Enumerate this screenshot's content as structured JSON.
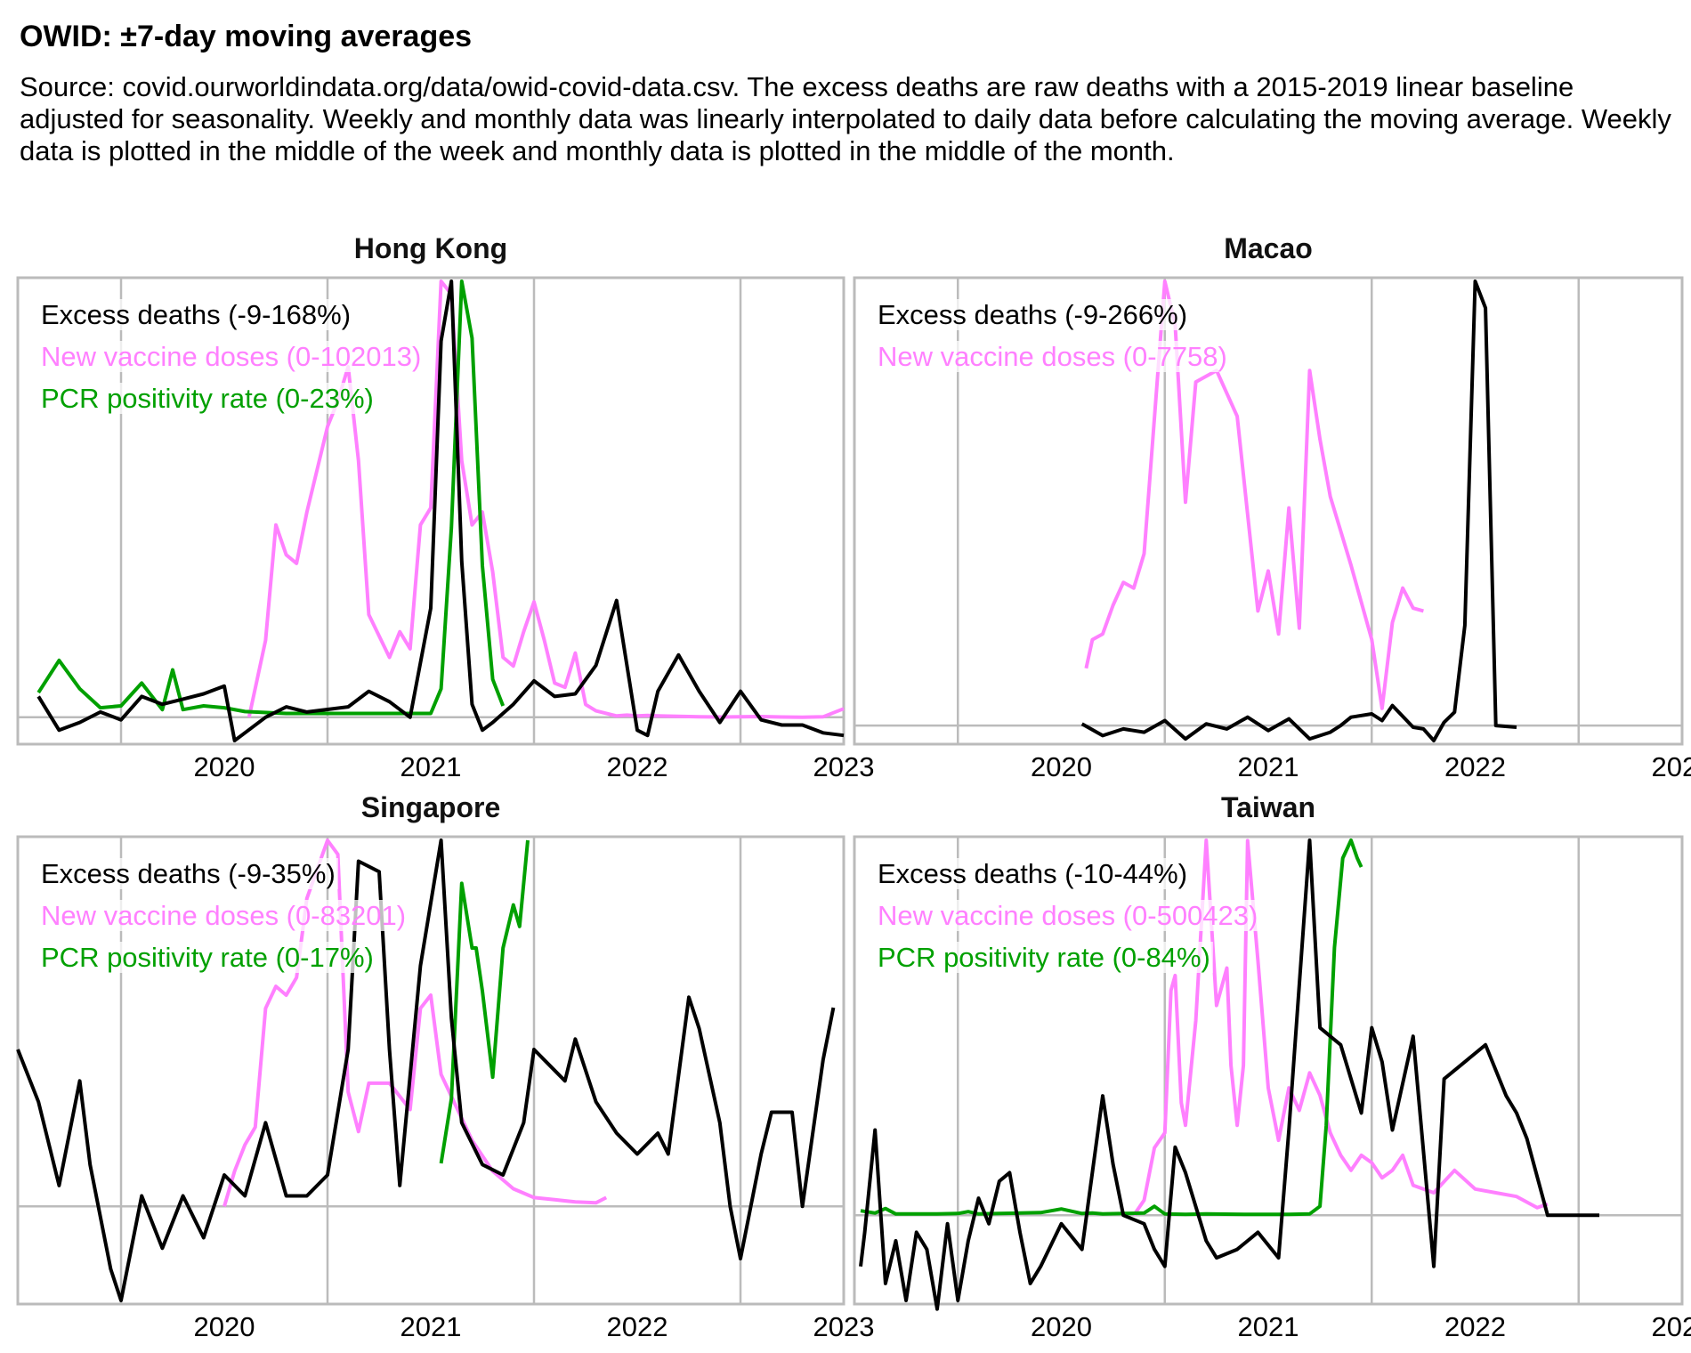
{
  "title": "OWID: ±7-day moving averages",
  "subtitle": "Source: covid.ourworldindata.org/data/owid-covid-data.csv. The excess deaths are raw deaths with a 2015-2019 linear baseline adjusted for seasonality. Weekly and monthly data was linearly interpolated to daily data before calculating the moving average. Weekly data is plotted in the middle of the week and monthly data is plotted in the middle of the month.",
  "colors": {
    "excess": "#000000",
    "vaccine": "#ff80ff",
    "pcr": "#00a000",
    "grid": "#bbbbbb"
  },
  "chart_data": [
    {
      "type": "line",
      "title": "Hong Kong",
      "xlabel": "",
      "ylabel": "",
      "x_ticks": [
        "2020",
        "2021",
        "2022",
        "2023"
      ],
      "xlim": [
        2019.5,
        2023.5
      ],
      "grid": true,
      "legend_position": "top-left",
      "series": [
        {
          "name": "Excess deaths (-9-168%)",
          "key": "excess",
          "range": [
            -9,
            168
          ],
          "x": [
            2019.6,
            2019.7,
            2019.8,
            2019.9,
            2020.0,
            2020.1,
            2020.2,
            2020.3,
            2020.4,
            2020.5,
            2020.55,
            2020.6,
            2020.7,
            2020.8,
            2020.9,
            2021.0,
            2021.1,
            2021.2,
            2021.3,
            2021.4,
            2021.5,
            2021.55,
            2021.6,
            2021.65,
            2021.7,
            2021.75,
            2021.8,
            2021.9,
            2022.0,
            2022.1,
            2022.2,
            2022.3,
            2022.4,
            2022.5,
            2022.55,
            2022.6,
            2022.7,
            2022.8,
            2022.9,
            2023.0,
            2023.1,
            2023.2,
            2023.3,
            2023.4,
            2023.5
          ],
          "y": [
            8,
            -5,
            -2,
            2,
            -1,
            8,
            5,
            7,
            9,
            12,
            -9,
            -6,
            0,
            4,
            2,
            3,
            4,
            10,
            6,
            0,
            42,
            145,
            168,
            60,
            5,
            -5,
            -2,
            5,
            14,
            8,
            9,
            20,
            45,
            -5,
            -7,
            10,
            24,
            10,
            -2,
            10,
            -1,
            -3,
            -3,
            -6,
            -7
          ]
        },
        {
          "name": "New vaccine doses (0-102013)",
          "key": "vaccine",
          "range": [
            0,
            102013
          ],
          "x": [
            2020.62,
            2020.7,
            2020.75,
            2020.8,
            2020.85,
            2020.9,
            2021.0,
            2021.05,
            2021.1,
            2021.15,
            2021.2,
            2021.3,
            2021.35,
            2021.4,
            2021.45,
            2021.5,
            2021.55,
            2021.6,
            2021.65,
            2021.7,
            2021.75,
            2021.8,
            2021.85,
            2021.9,
            2021.95,
            2022.0,
            2022.05,
            2022.1,
            2022.15,
            2022.2,
            2022.25,
            2022.3,
            2022.4,
            2022.45,
            2022.5,
            2022.55,
            2022.6,
            2022.7,
            2022.8,
            2022.9,
            2023.0,
            2023.1,
            2023.2,
            2023.3,
            2023.4,
            2023.5
          ],
          "y": [
            0,
            18000,
            45000,
            38000,
            36000,
            48000,
            68000,
            74000,
            82000,
            60000,
            24000,
            14000,
            20000,
            16000,
            45000,
            49000,
            102013,
            99000,
            60000,
            45000,
            48000,
            34000,
            14000,
            12000,
            20000,
            27000,
            18000,
            8000,
            7000,
            15000,
            3000,
            1500,
            300,
            500,
            300,
            400,
            300,
            200,
            100,
            50,
            100,
            150,
            50,
            20,
            100,
            2000
          ]
        },
        {
          "name": "PCR positivity rate (0-23%)",
          "key": "pcr",
          "range": [
            0,
            23
          ],
          "x": [
            2019.6,
            2019.7,
            2019.8,
            2019.9,
            2020.0,
            2020.1,
            2020.2,
            2020.25,
            2020.3,
            2020.4,
            2020.5,
            2020.6,
            2020.8,
            2021.0,
            2021.2,
            2021.4,
            2021.5,
            2021.55,
            2021.6,
            2021.65,
            2021.7,
            2021.75,
            2021.8,
            2021.85
          ],
          "y": [
            1.3,
            3.0,
            1.5,
            0.5,
            0.6,
            1.8,
            0.4,
            2.5,
            0.4,
            0.6,
            0.5,
            0.3,
            0.2,
            0.2,
            0.2,
            0.2,
            0.2,
            1.5,
            10,
            23,
            20,
            8,
            2,
            0.6
          ]
        }
      ]
    },
    {
      "type": "line",
      "title": "Macao",
      "xlabel": "",
      "ylabel": "",
      "x_ticks": [
        "2020",
        "2021",
        "2022",
        "2023"
      ],
      "xlim": [
        2019.5,
        2023.5
      ],
      "grid": true,
      "legend_position": "top-left",
      "series": [
        {
          "name": "Excess deaths (-9-266%)",
          "key": "excess",
          "range": [
            -9,
            266
          ],
          "x": [
            2020.6,
            2020.7,
            2020.8,
            2020.9,
            2021.0,
            2021.1,
            2021.2,
            2021.3,
            2021.4,
            2021.5,
            2021.6,
            2021.7,
            2021.8,
            2021.85,
            2021.9,
            2022.0,
            2022.05,
            2022.1,
            2022.2,
            2022.25,
            2022.3,
            2022.35,
            2022.4,
            2022.45,
            2022.5,
            2022.55,
            2022.6,
            2022.7
          ],
          "y": [
            1,
            -6,
            -2,
            -4,
            3,
            -8,
            1,
            -2,
            5,
            -3,
            4,
            -8,
            -4,
            0,
            5,
            7,
            3,
            12,
            -1,
            -2,
            -9,
            2,
            8,
            60,
            266,
            250,
            0,
            -1
          ]
        },
        {
          "name": "New vaccine doses (0-7758)",
          "key": "vaccine",
          "range": [
            0,
            7758
          ],
          "x": [
            2020.62,
            2020.65,
            2020.7,
            2020.75,
            2020.8,
            2020.85,
            2020.9,
            2021.0,
            2021.05,
            2021.1,
            2021.15,
            2021.25,
            2021.35,
            2021.45,
            2021.5,
            2021.55,
            2021.6,
            2021.65,
            2021.7,
            2021.75,
            2021.8,
            2021.9,
            2022.0,
            2022.05,
            2022.1,
            2022.15,
            2022.2,
            2022.25
          ],
          "y": [
            1000,
            1500,
            1600,
            2100,
            2500,
            2400,
            3000,
            7758,
            7000,
            3900,
            6000,
            6200,
            5400,
            2000,
            2700,
            1600,
            3800,
            1700,
            6200,
            5000,
            4000,
            2800,
            1500,
            300,
            1800,
            2400,
            2050,
            2000
          ]
        }
      ]
    },
    {
      "type": "line",
      "title": "Singapore",
      "xlabel": "",
      "ylabel": "",
      "x_ticks": [
        "2020",
        "2021",
        "2022",
        "2023"
      ],
      "xlim": [
        2019.5,
        2023.5
      ],
      "grid": true,
      "legend_position": "top-left",
      "series": [
        {
          "name": "Excess deaths (-9-35%)",
          "key": "excess",
          "range": [
            -9,
            35
          ],
          "x": [
            2019.5,
            2019.6,
            2019.7,
            2019.8,
            2019.85,
            2019.95,
            2020.0,
            2020.05,
            2020.1,
            2020.2,
            2020.3,
            2020.4,
            2020.5,
            2020.6,
            2020.7,
            2020.8,
            2020.9,
            2021.0,
            2021.1,
            2021.15,
            2021.25,
            2021.3,
            2021.35,
            2021.45,
            2021.55,
            2021.6,
            2021.65,
            2021.7,
            2021.75,
            2021.85,
            2021.95,
            2022.0,
            2022.05,
            2022.15,
            2022.2,
            2022.3,
            2022.4,
            2022.5,
            2022.6,
            2022.65,
            2022.75,
            2022.8,
            2022.9,
            2022.95,
            2023.0,
            2023.1,
            2023.15,
            2023.25,
            2023.3,
            2023.4,
            2023.45
          ],
          "y": [
            15,
            10,
            2,
            12,
            4,
            -6,
            -9,
            -4,
            1,
            -4,
            1,
            -3,
            3,
            1,
            8,
            1,
            1,
            3,
            15,
            33,
            32,
            15,
            2,
            23,
            35,
            18,
            8,
            6,
            4,
            3,
            8,
            15,
            14,
            12,
            16,
            10,
            7,
            5,
            7,
            5,
            20,
            17,
            8,
            0,
            -5,
            5,
            9,
            9,
            0,
            14,
            19
          ]
        },
        {
          "name": "New vaccine doses (0-83201)",
          "key": "vaccine",
          "range": [
            0,
            83201
          ],
          "x": [
            2020.5,
            2020.55,
            2020.6,
            2020.65,
            2020.7,
            2020.75,
            2020.8,
            2020.85,
            2020.9,
            2021.0,
            2021.05,
            2021.1,
            2021.15,
            2021.2,
            2021.3,
            2021.35,
            2021.4,
            2021.45,
            2021.5,
            2021.55,
            2021.6,
            2021.7,
            2021.8,
            2021.9,
            2022.0,
            2022.1,
            2022.2,
            2022.3,
            2022.35
          ],
          "y": [
            0,
            8000,
            14000,
            18000,
            45000,
            50000,
            48000,
            52000,
            70000,
            83201,
            80000,
            26000,
            17000,
            28000,
            28000,
            25000,
            22000,
            45000,
            48000,
            30000,
            25000,
            15000,
            8000,
            4000,
            2000,
            1500,
            1000,
            800,
            2000
          ]
        },
        {
          "name": "PCR positivity rate (0-17%)",
          "key": "pcr",
          "range": [
            0,
            17
          ],
          "x": [
            2021.55,
            2021.6,
            2021.65,
            2021.7,
            2021.72,
            2021.75,
            2021.8,
            2021.85,
            2021.9,
            2021.93,
            2021.97
          ],
          "y": [
            2,
            5,
            15,
            12,
            12,
            10,
            6,
            12,
            14,
            13,
            17
          ]
        }
      ]
    },
    {
      "type": "line",
      "title": "Taiwan",
      "xlabel": "",
      "ylabel": "",
      "x_ticks": [
        "2020",
        "2021",
        "2022",
        "2023"
      ],
      "xlim": [
        2019.5,
        2023.5
      ],
      "grid": true,
      "legend_position": "top-left",
      "series": [
        {
          "name": "Excess deaths (-10-44%)",
          "key": "excess",
          "range": [
            -10,
            44
          ],
          "x": [
            2019.53,
            2019.55,
            2019.6,
            2019.65,
            2019.7,
            2019.75,
            2019.8,
            2019.85,
            2019.9,
            2019.95,
            2020.0,
            2020.05,
            2020.1,
            2020.15,
            2020.2,
            2020.25,
            2020.3,
            2020.35,
            2020.4,
            2020.5,
            2020.6,
            2020.7,
            2020.75,
            2020.8,
            2020.9,
            2020.95,
            2021.0,
            2021.05,
            2021.1,
            2021.2,
            2021.25,
            2021.35,
            2021.45,
            2021.55,
            2021.6,
            2021.7,
            2021.75,
            2021.8,
            2021.85,
            2021.95,
            2022.0,
            2022.05,
            2022.1,
            2022.2,
            2022.3,
            2022.35,
            2022.45,
            2022.55,
            2022.65,
            2022.7,
            2022.75,
            2022.85,
            2022.95,
            2023.05,
            2023.1
          ],
          "y": [
            -6,
            -2,
            10,
            -8,
            -3,
            -10,
            -2,
            -4,
            -11,
            -1,
            -10,
            -3,
            2,
            -1,
            4,
            5,
            -2,
            -8,
            -6,
            -1,
            -4,
            14,
            6,
            0,
            -1,
            -4,
            -6,
            8,
            5,
            -3,
            -5,
            -4,
            -2,
            -5,
            10,
            44,
            22,
            21,
            20,
            12,
            22,
            18,
            10,
            21,
            -6,
            16,
            18,
            20,
            14,
            12,
            9,
            0,
            0,
            0,
            0
          ]
        },
        {
          "name": "New vaccine doses (0-500423)",
          "key": "vaccine",
          "range": [
            0,
            500423
          ],
          "x": [
            2020.85,
            2020.9,
            2020.95,
            2021.0,
            2021.03,
            2021.05,
            2021.08,
            2021.1,
            2021.15,
            2021.2,
            2021.25,
            2021.3,
            2021.32,
            2021.35,
            2021.38,
            2021.4,
            2021.45,
            2021.5,
            2021.55,
            2021.6,
            2021.65,
            2021.7,
            2021.75,
            2021.8,
            2021.85,
            2021.9,
            2021.95,
            2022.0,
            2022.05,
            2022.1,
            2022.15,
            2022.2,
            2022.3,
            2022.4,
            2022.5,
            2022.6,
            2022.7,
            2022.8,
            2022.85
          ],
          "y": [
            0,
            20000,
            90000,
            110000,
            300000,
            320000,
            150000,
            120000,
            260000,
            500423,
            280000,
            330000,
            200000,
            120000,
            200000,
            500000,
            340000,
            170000,
            100000,
            170000,
            140000,
            190000,
            160000,
            110000,
            80000,
            60000,
            80000,
            70000,
            50000,
            60000,
            80000,
            40000,
            30000,
            60000,
            35000,
            30000,
            25000,
            10000,
            15000
          ]
        },
        {
          "name": "PCR positivity rate (0-84%)",
          "key": "pcr",
          "range": [
            0,
            84
          ],
          "x": [
            2019.53,
            2019.6,
            2019.65,
            2019.7,
            2019.8,
            2019.9,
            2020.0,
            2020.05,
            2020.1,
            2020.2,
            2020.3,
            2020.4,
            2020.5,
            2020.6,
            2020.65,
            2020.7,
            2020.8,
            2020.9,
            2020.95,
            2021.0,
            2021.1,
            2021.2,
            2021.4,
            2021.6,
            2021.7,
            2021.75,
            2021.78,
            2021.82,
            2021.86,
            2021.9,
            2021.93,
            2021.95
          ],
          "y": [
            1,
            0.5,
            1.5,
            0.3,
            0.3,
            0.3,
            0.4,
            0.8,
            0.3,
            0.4,
            0.5,
            0.6,
            1.4,
            0.4,
            0.5,
            0.3,
            0.4,
            0.5,
            2,
            0.3,
            0.2,
            0.3,
            0.2,
            0.2,
            0.3,
            2,
            20,
            60,
            80,
            84,
            80,
            78
          ]
        }
      ]
    }
  ]
}
